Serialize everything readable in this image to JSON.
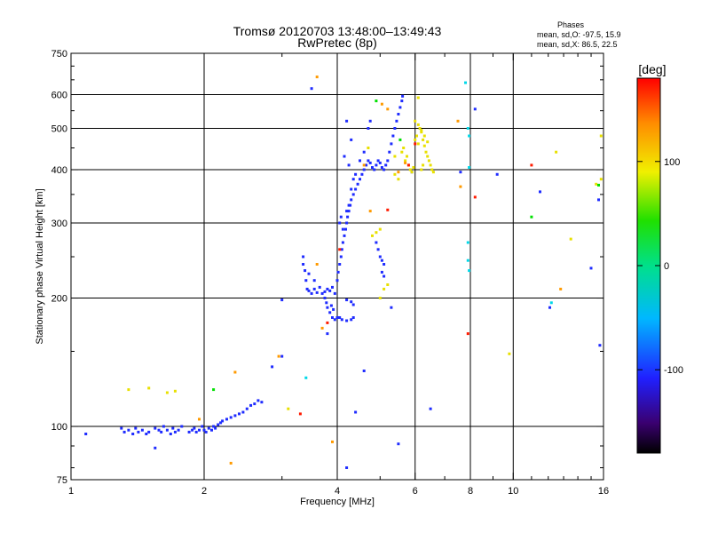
{
  "chart_data": {
    "type": "scatter",
    "title": "Tromsø 20120703 13:48:00–13:49:43",
    "subtitle": "RwPretec (8p)",
    "xlabel": "Frequency [MHz]",
    "ylabel": "Stationary phase Virtual Height [km]",
    "x_scale": "log",
    "y_scale": "log",
    "xlim": [
      1,
      16
    ],
    "ylim": [
      75,
      750
    ],
    "x_ticks": [
      1,
      2,
      4,
      6,
      8,
      10,
      16
    ],
    "y_ticks": [
      75,
      100,
      200,
      300,
      400,
      500,
      600,
      750
    ],
    "x_gridlines": [
      2,
      4,
      6,
      8,
      10
    ],
    "y_gridlines": [
      100,
      200,
      300,
      400,
      500,
      600
    ],
    "grid": true,
    "phase_stats": {
      "heading": "Phases",
      "o_line": "mean, sd,O: -97.5, 15.9",
      "x_line": "mean, sd,X:  86.5, 22.5"
    },
    "colorbar": {
      "label": "[deg]",
      "range": [
        -180,
        180
      ],
      "ticks": [
        -100,
        0,
        100
      ]
    },
    "series": [
      {
        "color": "#1f2cff",
        "points": [
          [
            1.08,
            96
          ],
          [
            1.3,
            99
          ],
          [
            1.32,
            97
          ],
          [
            1.35,
            98
          ],
          [
            1.38,
            96
          ],
          [
            1.4,
            99
          ],
          [
            1.42,
            97
          ],
          [
            1.45,
            98
          ],
          [
            1.48,
            96
          ],
          [
            1.5,
            97
          ],
          [
            1.55,
            99
          ],
          [
            1.58,
            98
          ],
          [
            1.6,
            97
          ],
          [
            1.62,
            100
          ],
          [
            1.65,
            98
          ],
          [
            1.68,
            96
          ],
          [
            1.7,
            99
          ],
          [
            1.72,
            97
          ],
          [
            1.75,
            98
          ],
          [
            1.78,
            100
          ],
          [
            1.85,
            97
          ],
          [
            1.88,
            98
          ],
          [
            1.9,
            99
          ],
          [
            1.92,
            97
          ],
          [
            1.95,
            98
          ],
          [
            1.98,
            100
          ],
          [
            2.0,
            98
          ],
          [
            2.02,
            97
          ],
          [
            2.05,
            99
          ],
          [
            2.08,
            98
          ],
          [
            2.1,
            100
          ],
          [
            2.12,
            99
          ],
          [
            2.15,
            101
          ],
          [
            2.18,
            102
          ],
          [
            2.2,
            103
          ],
          [
            2.25,
            104
          ],
          [
            2.3,
            105
          ],
          [
            2.35,
            106
          ],
          [
            2.4,
            107
          ],
          [
            2.45,
            108
          ],
          [
            2.5,
            110
          ],
          [
            2.55,
            112
          ],
          [
            2.6,
            113
          ],
          [
            2.65,
            115
          ],
          [
            2.7,
            114
          ],
          [
            1.55,
            89
          ],
          [
            3.0,
            198
          ],
          [
            3.0,
            146
          ],
          [
            3.35,
            250
          ],
          [
            3.35,
            240
          ],
          [
            3.4,
            220
          ],
          [
            3.42,
            210
          ],
          [
            3.45,
            208
          ],
          [
            3.5,
            205
          ],
          [
            3.55,
            210
          ],
          [
            3.6,
            206
          ],
          [
            3.65,
            212
          ],
          [
            3.7,
            205
          ],
          [
            3.75,
            207
          ],
          [
            3.8,
            210
          ],
          [
            3.85,
            208
          ],
          [
            3.9,
            212
          ],
          [
            3.95,
            205
          ],
          [
            3.38,
            232
          ],
          [
            3.45,
            228
          ],
          [
            3.55,
            220
          ],
          [
            3.75,
            200
          ],
          [
            3.78,
            195
          ],
          [
            3.8,
            190
          ],
          [
            3.85,
            185
          ],
          [
            3.9,
            180
          ],
          [
            3.95,
            178
          ],
          [
            4.0,
            180
          ],
          [
            3.92,
            188
          ],
          [
            3.88,
            192
          ],
          [
            4.05,
            180
          ],
          [
            4.1,
            178
          ],
          [
            4.2,
            177
          ],
          [
            4.3,
            178
          ],
          [
            4.35,
            180
          ],
          [
            4.2,
            198
          ],
          [
            4.3,
            196
          ],
          [
            4.35,
            193
          ],
          [
            4.0,
            220
          ],
          [
            4.02,
            230
          ],
          [
            4.05,
            240
          ],
          [
            4.08,
            250
          ],
          [
            4.1,
            260
          ],
          [
            4.12,
            270
          ],
          [
            4.15,
            280
          ],
          [
            4.18,
            290
          ],
          [
            4.2,
            300
          ],
          [
            4.22,
            310
          ],
          [
            4.25,
            320
          ],
          [
            4.28,
            330
          ],
          [
            4.3,
            340
          ],
          [
            4.35,
            350
          ],
          [
            4.4,
            360
          ],
          [
            4.45,
            370
          ],
          [
            4.5,
            380
          ],
          [
            4.55,
            390
          ],
          [
            4.6,
            400
          ],
          [
            4.65,
            410
          ],
          [
            4.7,
            420
          ],
          [
            4.75,
            415
          ],
          [
            4.8,
            405
          ],
          [
            4.85,
            400
          ],
          [
            4.9,
            410
          ],
          [
            4.95,
            420
          ],
          [
            5.0,
            415
          ],
          [
            5.05,
            405
          ],
          [
            5.1,
            400
          ],
          [
            5.15,
            410
          ],
          [
            5.2,
            420
          ],
          [
            5.25,
            440
          ],
          [
            5.3,
            460
          ],
          [
            5.35,
            480
          ],
          [
            5.4,
            500
          ],
          [
            5.45,
            520
          ],
          [
            5.5,
            540
          ],
          [
            5.55,
            560
          ],
          [
            5.6,
            580
          ],
          [
            5.62,
            595
          ],
          [
            4.05,
            300
          ],
          [
            4.08,
            310
          ],
          [
            4.12,
            290
          ],
          [
            4.2,
            320
          ],
          [
            4.25,
            330
          ],
          [
            4.3,
            360
          ],
          [
            4.35,
            380
          ],
          [
            4.4,
            390
          ],
          [
            4.6,
            440
          ],
          [
            4.7,
            500
          ],
          [
            4.75,
            520
          ],
          [
            4.2,
            520
          ],
          [
            4.3,
            470
          ],
          [
            4.15,
            430
          ],
          [
            4.25,
            410
          ],
          [
            4.9,
            270
          ],
          [
            4.95,
            260
          ],
          [
            5.0,
            250
          ],
          [
            5.05,
            245
          ],
          [
            5.1,
            240
          ],
          [
            5.05,
            230
          ],
          [
            5.1,
            225
          ],
          [
            3.5,
            620
          ],
          [
            4.5,
            420
          ],
          [
            4.6,
            135
          ],
          [
            4.4,
            108
          ],
          [
            4.2,
            80
          ],
          [
            5.5,
            91
          ],
          [
            5.9,
            395
          ],
          [
            7.6,
            395
          ],
          [
            8.2,
            555
          ],
          [
            9.2,
            390
          ],
          [
            11.5,
            355
          ],
          [
            12.1,
            190
          ],
          [
            15.6,
            340
          ],
          [
            15.0,
            235
          ],
          [
            15.7,
            155
          ],
          [
            6.5,
            110
          ],
          [
            5.3,
            190
          ],
          [
            3.8,
            165
          ],
          [
            2.85,
            138
          ]
        ]
      },
      {
        "color": "#e8e000",
        "points": [
          [
            5.6,
            440
          ],
          [
            5.65,
            450
          ],
          [
            5.7,
            420
          ],
          [
            5.75,
            430
          ],
          [
            5.8,
            410
          ],
          [
            5.85,
            400
          ],
          [
            5.9,
            395
          ],
          [
            5.95,
            405
          ],
          [
            6.0,
            470
          ],
          [
            6.05,
            480
          ],
          [
            6.1,
            460
          ],
          [
            6.15,
            500
          ],
          [
            6.2,
            490
          ],
          [
            6.25,
            470
          ],
          [
            6.3,
            455
          ],
          [
            6.35,
            440
          ],
          [
            6.4,
            430
          ],
          [
            6.45,
            420
          ],
          [
            6.5,
            410
          ],
          [
            6.55,
            400
          ],
          [
            6.6,
            395
          ],
          [
            6.0,
            520
          ],
          [
            6.1,
            510
          ],
          [
            6.2,
            495
          ],
          [
            6.3,
            480
          ],
          [
            6.4,
            465
          ],
          [
            6.2,
            400
          ],
          [
            6.25,
            410
          ],
          [
            5.5,
            380
          ],
          [
            5.4,
            390
          ],
          [
            1.35,
            122
          ],
          [
            1.5,
            123
          ],
          [
            1.65,
            120
          ],
          [
            1.72,
            121
          ],
          [
            4.9,
            285
          ],
          [
            5.0,
            290
          ],
          [
            4.8,
            280
          ],
          [
            12.5,
            440
          ],
          [
            13.5,
            275
          ],
          [
            15.8,
            380
          ],
          [
            15.4,
            370
          ],
          [
            15.8,
            480
          ],
          [
            6.1,
            590
          ],
          [
            5.0,
            200
          ],
          [
            5.1,
            210
          ],
          [
            5.2,
            215
          ],
          [
            9.8,
            148
          ],
          [
            3.1,
            110
          ],
          [
            4.7,
            450
          ],
          [
            5.4,
            430
          ]
        ]
      },
      {
        "color": "#ff9a00",
        "points": [
          [
            1.95,
            104
          ],
          [
            2.3,
            82
          ],
          [
            2.35,
            134
          ],
          [
            3.6,
            660
          ],
          [
            3.9,
            92
          ],
          [
            5.05,
            570
          ],
          [
            5.2,
            555
          ],
          [
            5.5,
            395
          ],
          [
            5.7,
            415
          ],
          [
            7.5,
            520
          ],
          [
            7.6,
            365
          ],
          [
            4.75,
            320
          ],
          [
            4.6,
            410
          ],
          [
            3.6,
            240
          ],
          [
            12.8,
            210
          ],
          [
            2.95,
            146
          ],
          [
            3.7,
            170
          ]
        ]
      },
      {
        "color": "#ff1a00",
        "points": [
          [
            3.3,
            107
          ],
          [
            7.9,
            165
          ],
          [
            8.2,
            345
          ],
          [
            5.2,
            322
          ],
          [
            11.0,
            410
          ],
          [
            5.8,
            410
          ],
          [
            4.05,
            260
          ],
          [
            6.0,
            460
          ],
          [
            3.8,
            175
          ]
        ]
      },
      {
        "color": "#00e000",
        "points": [
          [
            2.1,
            122
          ],
          [
            4.9,
            580
          ],
          [
            11.0,
            310
          ],
          [
            15.6,
            368
          ],
          [
            5.55,
            470
          ]
        ]
      },
      {
        "color": "#00d8e8",
        "points": [
          [
            7.8,
            640
          ],
          [
            7.9,
            500
          ],
          [
            7.95,
            480
          ],
          [
            7.95,
            405
          ],
          [
            7.9,
            270
          ],
          [
            7.9,
            245
          ],
          [
            7.95,
            232
          ],
          [
            12.2,
            195
          ],
          [
            3.4,
            130
          ]
        ]
      }
    ]
  }
}
